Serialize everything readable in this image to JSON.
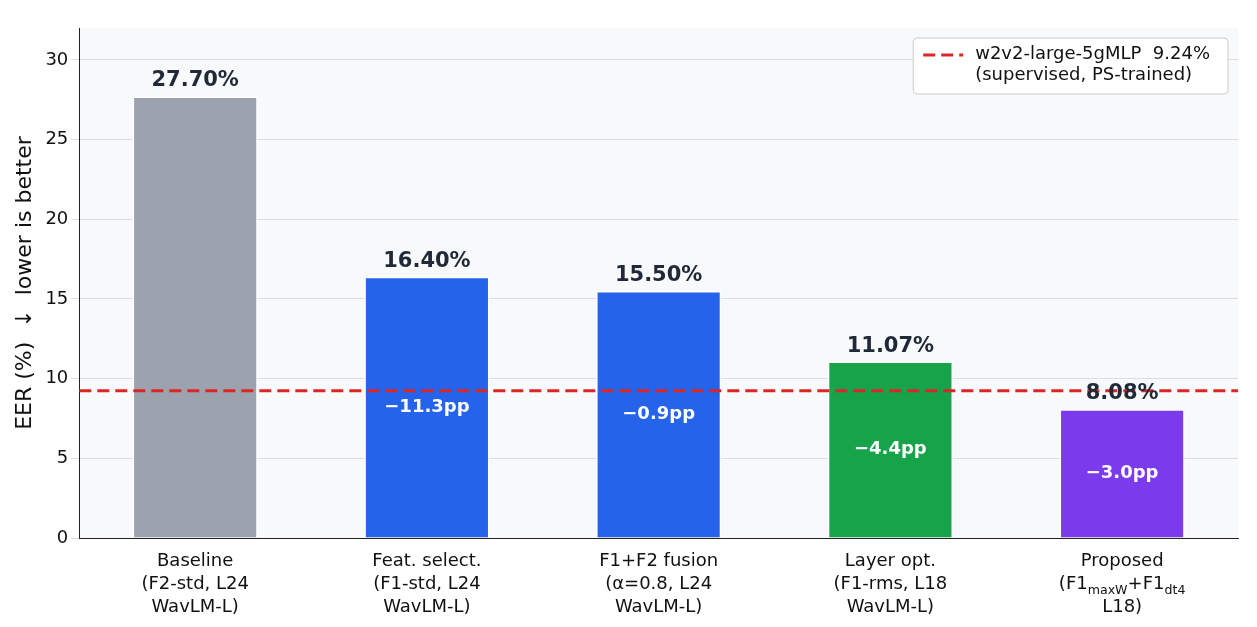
{
  "chart_data": {
    "type": "bar",
    "ylabel": "EER (%)  ↓  lower is better",
    "categories": [
      "Baseline\n(F2-std, L24\nWavLM-L)",
      "Feat. select.\n(F1-std, L24\nWavLM-L)",
      "F1+F2 fusion\n(α=0.8, L24\nWavLM-L)",
      "Layer opt.\n(F1-rms, L18\nWavLM-L)",
      "Proposed\n(F1$_{maxW}$+F1$_{dt4}$\nL18)"
    ],
    "values": [
      27.7,
      16.4,
      15.5,
      11.07,
      8.08
    ],
    "colors": [
      "#9ca3af",
      "#2563eb",
      "#2563eb",
      "#16a34a",
      "#7c3aed"
    ],
    "value_labels": [
      "27.70%",
      "16.40%",
      "15.50%",
      "11.07%",
      "8.08%"
    ],
    "ylim": [
      0,
      32
    ],
    "yticks": [
      0,
      5,
      10,
      15,
      20,
      25,
      30
    ],
    "grid": "y",
    "legend": "top right",
    "ref_lines": [
      {
        "axis": "y",
        "value": 9.24,
        "label": "w2v2-large-5gMLP  9.24%\n(supervised, PS-trained)",
        "color": "#dc2626",
        "line_style": "dashed"
      }
    ],
    "annotations": [
      "−11.3pp",
      "−0.9pp",
      "−4.4pp",
      "−3.0pp"
    ]
  }
}
